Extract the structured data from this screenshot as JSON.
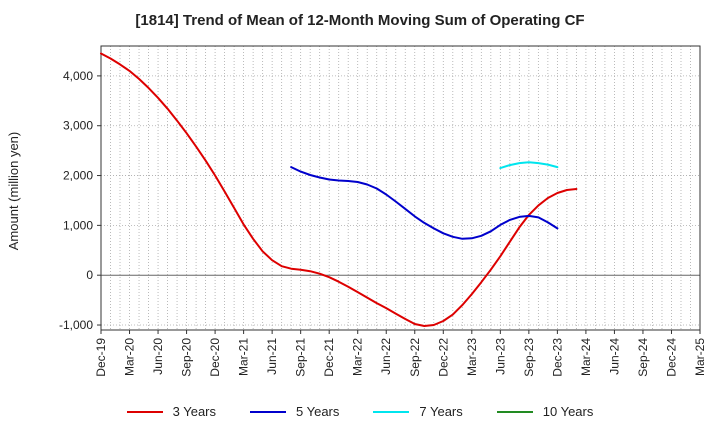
{
  "chart_data": {
    "type": "line",
    "title": "[1814]  Trend of Mean of 12-Month Moving Sum of Operating CF",
    "ylabel": "Amount (million yen)",
    "xlabel": "",
    "ylim": [
      -1100,
      4600
    ],
    "y_ticks": [
      -1000,
      0,
      1000,
      2000,
      3000,
      4000
    ],
    "y_tick_labels": [
      "-1,000",
      "0",
      "1,000",
      "2,000",
      "3,000",
      "4,000"
    ],
    "x_tick_labels": [
      "Dec-19",
      "Mar-20",
      "Jun-20",
      "Sep-20",
      "Dec-20",
      "Mar-21",
      "Jun-21",
      "Sep-21",
      "Dec-21",
      "Mar-22",
      "Jun-22",
      "Sep-22",
      "Dec-22",
      "Mar-23",
      "Jun-23",
      "Sep-23",
      "Dec-23",
      "Mar-24",
      "Jun-24",
      "Sep-24",
      "Dec-24",
      "Mar-25"
    ],
    "grid": true,
    "legend_position": "bottom",
    "series": [
      {
        "name": "3 Years",
        "color": "#dd0000",
        "points": [
          [
            0,
            4450
          ],
          [
            1,
            4350
          ],
          [
            2,
            4230
          ],
          [
            3,
            4100
          ],
          [
            4,
            3940
          ],
          [
            5,
            3760
          ],
          [
            6,
            3560
          ],
          [
            7,
            3340
          ],
          [
            8,
            3100
          ],
          [
            9,
            2850
          ],
          [
            10,
            2580
          ],
          [
            11,
            2300
          ],
          [
            12,
            2000
          ],
          [
            13,
            1680
          ],
          [
            14,
            1350
          ],
          [
            15,
            1020
          ],
          [
            16,
            730
          ],
          [
            17,
            480
          ],
          [
            18,
            300
          ],
          [
            19,
            180
          ],
          [
            20,
            130
          ],
          [
            21,
            110
          ],
          [
            22,
            80
          ],
          [
            23,
            30
          ],
          [
            24,
            -40
          ],
          [
            25,
            -130
          ],
          [
            26,
            -230
          ],
          [
            27,
            -340
          ],
          [
            28,
            -450
          ],
          [
            29,
            -560
          ],
          [
            30,
            -660
          ],
          [
            31,
            -770
          ],
          [
            32,
            -880
          ],
          [
            33,
            -980
          ],
          [
            34,
            -1020
          ],
          [
            35,
            -1000
          ],
          [
            36,
            -920
          ],
          [
            37,
            -790
          ],
          [
            38,
            -600
          ],
          [
            39,
            -380
          ],
          [
            40,
            -140
          ],
          [
            41,
            110
          ],
          [
            42,
            380
          ],
          [
            43,
            670
          ],
          [
            44,
            960
          ],
          [
            45,
            1210
          ],
          [
            46,
            1400
          ],
          [
            47,
            1550
          ],
          [
            48,
            1650
          ],
          [
            49,
            1710
          ],
          [
            50,
            1730
          ]
        ]
      },
      {
        "name": "5 Years",
        "color": "#0000cc",
        "points": [
          [
            20,
            2170
          ],
          [
            21,
            2080
          ],
          [
            22,
            2010
          ],
          [
            23,
            1960
          ],
          [
            24,
            1920
          ],
          [
            25,
            1900
          ],
          [
            26,
            1890
          ],
          [
            27,
            1870
          ],
          [
            28,
            1820
          ],
          [
            29,
            1740
          ],
          [
            30,
            1620
          ],
          [
            31,
            1480
          ],
          [
            32,
            1330
          ],
          [
            33,
            1180
          ],
          [
            34,
            1050
          ],
          [
            35,
            940
          ],
          [
            36,
            840
          ],
          [
            37,
            770
          ],
          [
            38,
            730
          ],
          [
            39,
            740
          ],
          [
            40,
            790
          ],
          [
            41,
            880
          ],
          [
            42,
            1010
          ],
          [
            43,
            1110
          ],
          [
            44,
            1170
          ],
          [
            45,
            1190
          ],
          [
            46,
            1160
          ],
          [
            47,
            1060
          ],
          [
            48,
            940
          ]
        ]
      },
      {
        "name": "7 Years",
        "color": "#00e5ee",
        "points": [
          [
            42,
            2150
          ],
          [
            43,
            2210
          ],
          [
            44,
            2250
          ],
          [
            45,
            2265
          ],
          [
            46,
            2250
          ],
          [
            47,
            2220
          ],
          [
            48,
            2170
          ]
        ]
      },
      {
        "name": "10 Years",
        "color": "#228b22",
        "points": []
      }
    ]
  }
}
